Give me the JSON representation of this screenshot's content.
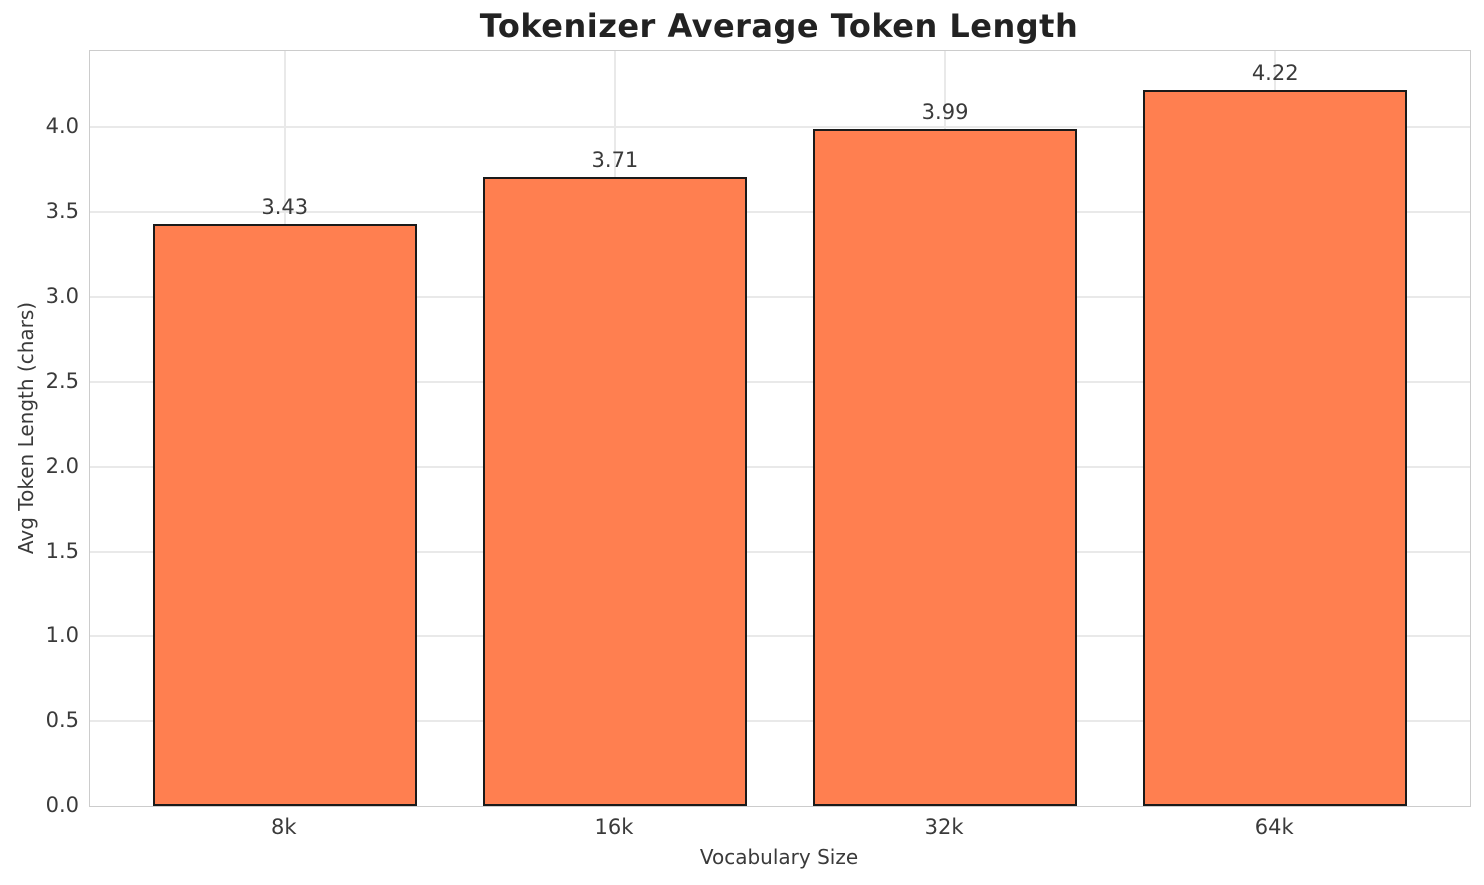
{
  "chart_data": {
    "type": "bar",
    "title": "Tokenizer Average Token Length",
    "xlabel": "Vocabulary Size",
    "ylabel": "Avg Token Length (chars)",
    "categories": [
      "8k",
      "16k",
      "32k",
      "64k"
    ],
    "values": [
      3.43,
      3.71,
      3.99,
      4.22
    ],
    "value_labels": [
      "3.43",
      "3.71",
      "3.99",
      "4.22"
    ],
    "ylim": [
      0,
      4.45
    ],
    "yticks": [
      0.0,
      0.5,
      1.0,
      1.5,
      2.0,
      2.5,
      3.0,
      3.5,
      4.0
    ],
    "grid": true,
    "legend": "none",
    "bar_color": "#FF7F50",
    "bar_edge_color": "#1a1a1a",
    "grid_color": "#e9e9e9",
    "spine_color": "#cccccc",
    "text_color": "#3a3a3a",
    "title_color": "#222222",
    "background": "#ffffff"
  }
}
